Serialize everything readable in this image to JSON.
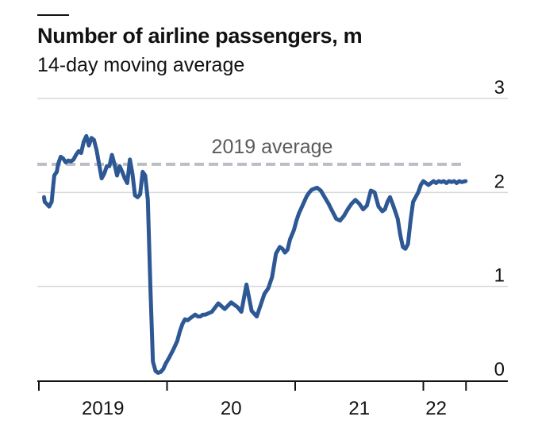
{
  "chart_data": {
    "type": "line",
    "title": "Number of airline passengers, m",
    "subtitle": "14-day moving average",
    "xlabel": "",
    "ylabel": "",
    "ylim": [
      0,
      3
    ],
    "y_ticks": [
      0,
      1,
      2,
      3
    ],
    "xlim": [
      2019.0,
      2022.5
    ],
    "x_ticks": [
      2019,
      2020,
      2021,
      2022,
      2022.333
    ],
    "x_tick_labels": [
      {
        "label": "2019",
        "x": 2019.5
      },
      {
        "label": "20",
        "x": 2020.5
      },
      {
        "label": "21",
        "x": 2021.5
      },
      {
        "label": "22",
        "x": 2022.1
      }
    ],
    "reference_line": {
      "label": "2019 average",
      "value": 2.3,
      "color": "#b9bfc4"
    },
    "series": [
      {
        "color": "#2e5894",
        "x": [
          2019.04,
          2019.045,
          2019.06,
          2019.08,
          2019.1,
          2019.11,
          2019.12,
          2019.14,
          2019.15,
          2019.17,
          2019.19,
          2019.21,
          2019.23,
          2019.25,
          2019.27,
          2019.29,
          2019.31,
          2019.33,
          2019.35,
          2019.37,
          2019.39,
          2019.41,
          2019.43,
          2019.45,
          2019.47,
          2019.49,
          2019.51,
          2019.53,
          2019.55,
          2019.57,
          2019.59,
          2019.61,
          2019.63,
          2019.65,
          2019.67,
          2019.69,
          2019.71,
          2019.73,
          2019.75,
          2019.77,
          2019.79,
          2019.81,
          2019.83,
          2019.85,
          2019.87,
          2019.89,
          2019.91,
          2019.93,
          2019.95,
          2019.97,
          2019.99,
          2020.02,
          2020.05,
          2020.08,
          2020.1,
          2020.12,
          2020.14,
          2020.16,
          2020.18,
          2020.2,
          2020.22,
          2020.24,
          2020.26,
          2020.28,
          2020.3,
          2020.35,
          2020.4,
          2020.45,
          2020.5,
          2020.55,
          2020.58,
          2020.62,
          2020.66,
          2020.7,
          2020.73,
          2020.76,
          2020.79,
          2020.82,
          2020.85,
          2020.88,
          2020.9,
          2020.92,
          2020.94,
          2020.96,
          2020.99,
          2021.01,
          2021.03,
          2021.05,
          2021.07,
          2021.09,
          2021.11,
          2021.13,
          2021.15,
          2021.17,
          2021.2,
          2021.23,
          2021.26,
          2021.29,
          2021.32,
          2021.35,
          2021.38,
          2021.41,
          2021.44,
          2021.47,
          2021.5,
          2021.53,
          2021.56,
          2021.59,
          2021.62,
          2021.65,
          2021.68,
          2021.7,
          2021.72,
          2021.74,
          2021.76,
          2021.78,
          2021.8,
          2021.82,
          2021.84,
          2021.86,
          2021.88,
          2021.9,
          2021.92,
          2021.94,
          2021.96,
          2021.98,
          2022.0,
          2022.02,
          2022.04,
          2022.06,
          2022.08,
          2022.1,
          2022.12,
          2022.14,
          2022.16,
          2022.18,
          2022.2,
          2022.22,
          2022.24,
          2022.26,
          2022.28,
          2022.3,
          2022.33
        ],
        "y": [
          1.95,
          1.9,
          1.88,
          1.85,
          1.9,
          2.05,
          2.18,
          2.22,
          2.3,
          2.38,
          2.36,
          2.32,
          2.34,
          2.33,
          2.35,
          2.4,
          2.44,
          2.42,
          2.54,
          2.6,
          2.5,
          2.58,
          2.56,
          2.45,
          2.3,
          2.15,
          2.2,
          2.28,
          2.28,
          2.4,
          2.3,
          2.18,
          2.28,
          2.22,
          2.15,
          2.1,
          2.35,
          2.2,
          1.97,
          1.95,
          1.98,
          2.22,
          2.18,
          1.92,
          1.0,
          0.2,
          0.1,
          0.08,
          0.09,
          0.12,
          0.18,
          0.25,
          0.33,
          0.42,
          0.52,
          0.6,
          0.65,
          0.64,
          0.66,
          0.68,
          0.7,
          0.68,
          0.68,
          0.7,
          0.7,
          0.73,
          0.82,
          0.76,
          0.83,
          0.78,
          0.73,
          1.02,
          0.74,
          0.68,
          0.8,
          0.92,
          0.98,
          1.1,
          1.35,
          1.42,
          1.4,
          1.36,
          1.39,
          1.5,
          1.6,
          1.7,
          1.78,
          1.84,
          1.9,
          1.96,
          2.0,
          2.03,
          2.04,
          2.05,
          2.02,
          1.95,
          1.88,
          1.8,
          1.72,
          1.7,
          1.75,
          1.82,
          1.88,
          1.92,
          1.88,
          1.82,
          1.86,
          2.02,
          2.0,
          1.85,
          1.8,
          1.82,
          1.9,
          1.95,
          1.88,
          1.8,
          1.72,
          1.55,
          1.42,
          1.4,
          1.45,
          1.7,
          1.9,
          1.95,
          2.0,
          2.08,
          2.12,
          2.1,
          2.08,
          2.1,
          2.12,
          2.1,
          2.12,
          2.11,
          2.12,
          2.1,
          2.12,
          2.11,
          2.12,
          2.1,
          2.12,
          2.11,
          2.12
        ]
      }
    ],
    "grid": true,
    "legend": "none"
  }
}
